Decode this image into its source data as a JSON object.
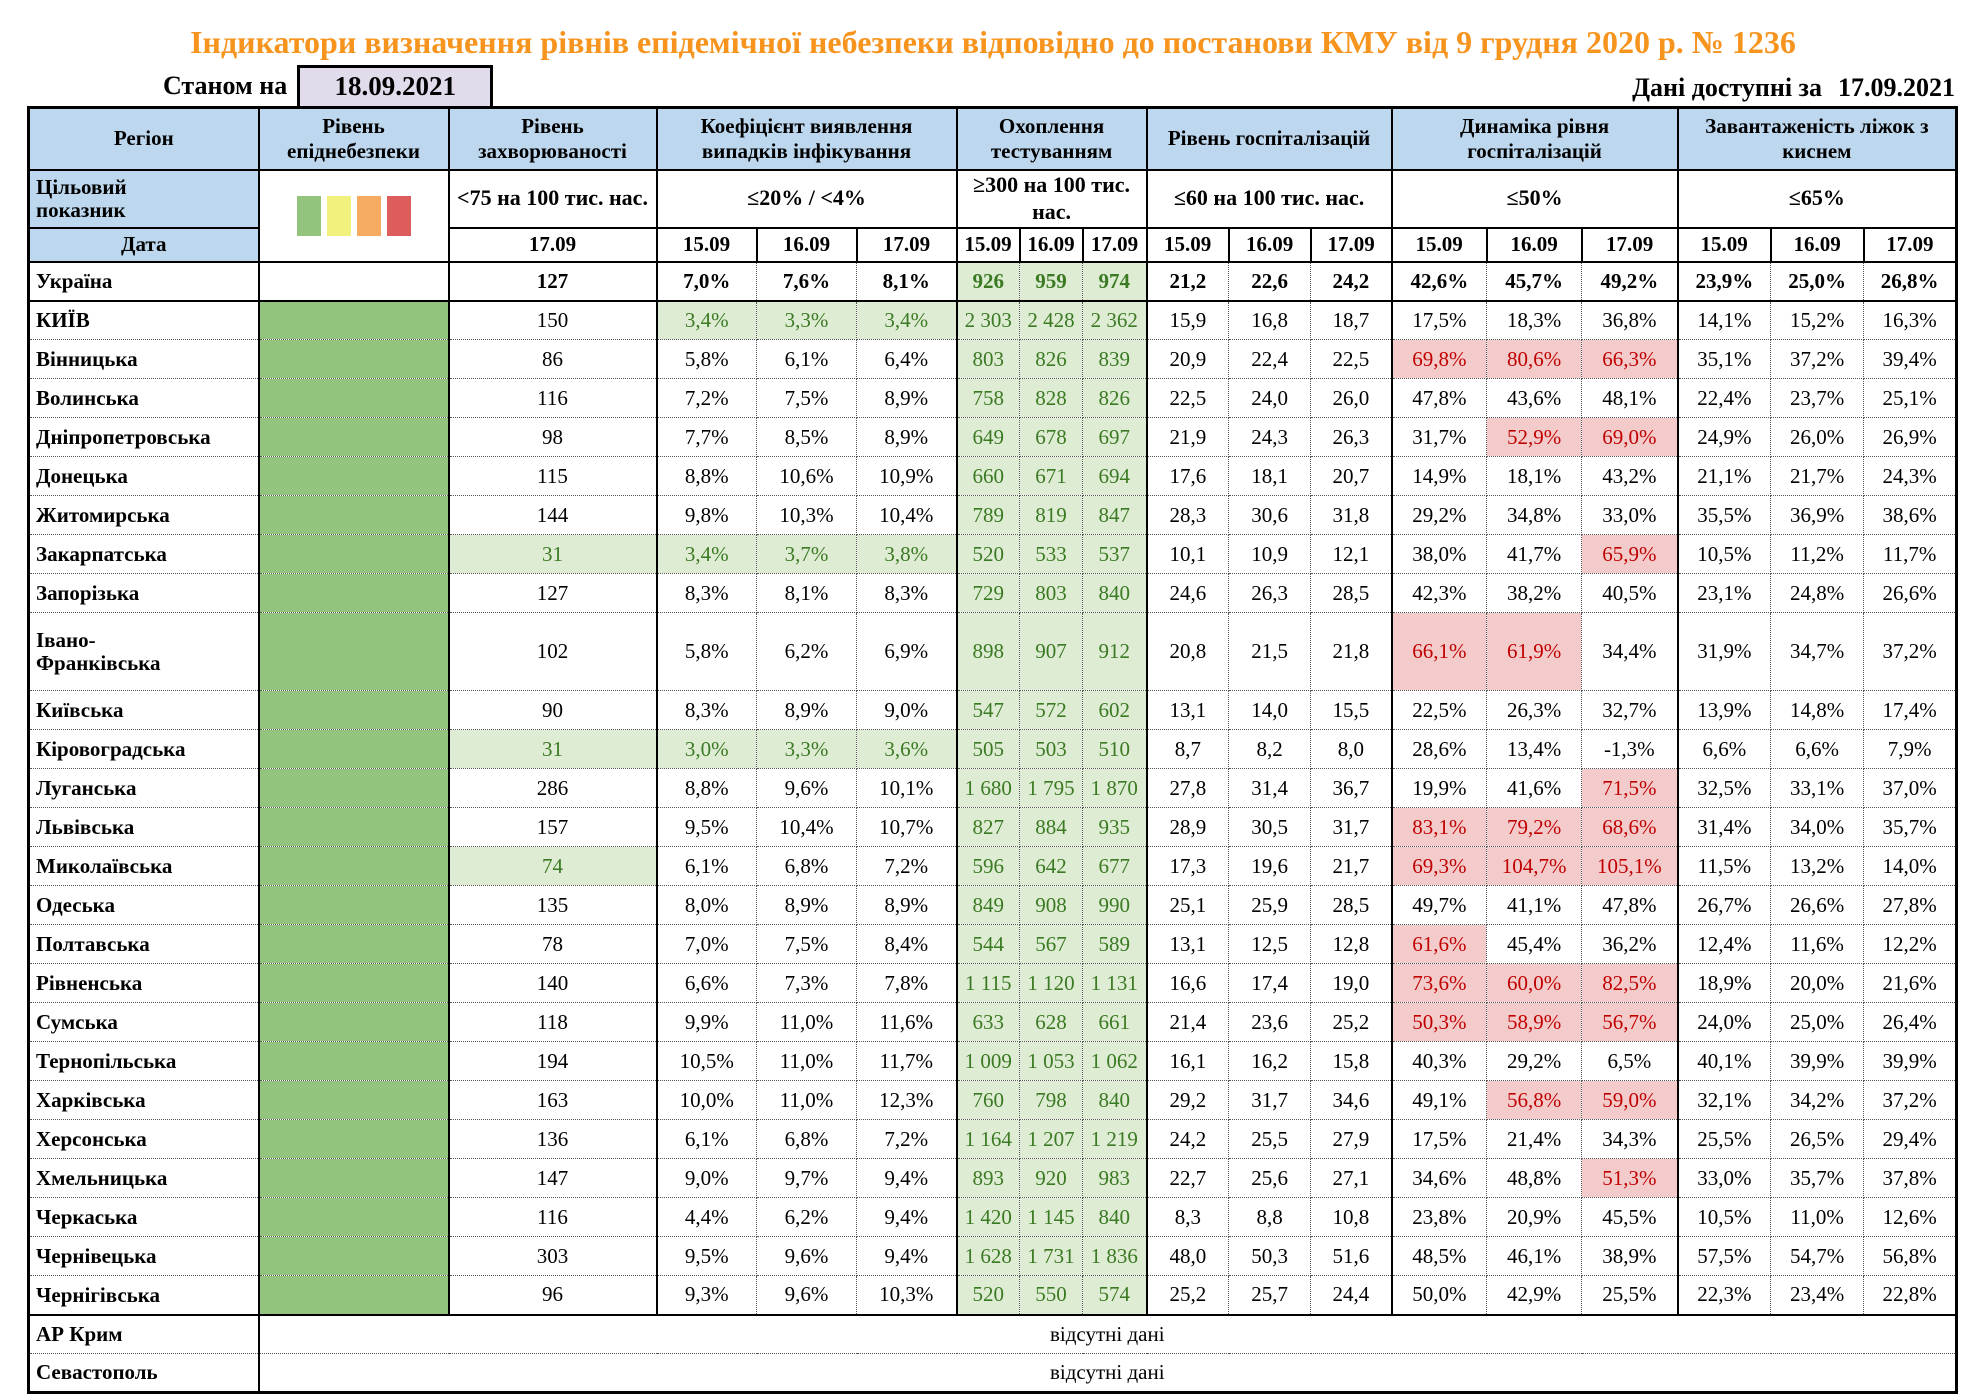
{
  "title": "Індикатори визначення рівнів епідемічної небезпеки відповідно до постанови КМУ від 9 грудня 2020 р. № 1236",
  "as_of_label": "Станом на",
  "as_of_date": "18.09.2021",
  "available_label": "Дані доступні за",
  "available_date": "17.09.2021",
  "columns": {
    "region": "Регіон",
    "risk_level": "Рівень епіднебезпеки",
    "incidence": "Рівень захворюваності",
    "detection": "Коефіцієнт виявлення випадків інфікування",
    "testing": "Охоплення тестуванням",
    "hospitalization": "Рівень госпіталізацій",
    "hosp_dynamics": "Динаміка рівня госпіталізацій",
    "oxygen_beds": "Завантаженість ліжок з киснем"
  },
  "target_row_label": "Цільовий\nпоказник",
  "targets": {
    "incidence": "<75 на 100 тис. нас.",
    "detection": "≤20% / <4%",
    "testing": "≥300 на 100 тис. нас.",
    "hospitalization": "≤60 на 100 тис. нас.",
    "dynamics": "≤50%",
    "beds": "≤65%"
  },
  "date_row_label": "Дата",
  "dates": {
    "incidence": "17.09",
    "d1": "15.09",
    "d2": "16.09",
    "d3": "17.09"
  },
  "legend_colors": [
    "#93C47D",
    "#F3F17E",
    "#F5AC61",
    "#DD5C5C"
  ],
  "risk_level_fill": "#93C47D",
  "no_data_text": "відсутні дані",
  "regions": [
    {
      "name": "Україна",
      "is_total": true,
      "incidence": "127",
      "inc_green": false,
      "coef": [
        "7,0%",
        "7,6%",
        "8,1%"
      ],
      "coef_green": false,
      "testing": [
        "926",
        "959",
        "974"
      ],
      "hosp": [
        "21,2",
        "22,6",
        "24,2"
      ],
      "dyn": [
        "42,6%",
        "45,7%",
        "49,2%"
      ],
      "dyn_red": [
        false,
        false,
        false
      ],
      "beds": [
        "23,9%",
        "25,0%",
        "26,8%"
      ]
    },
    {
      "name": "КИЇВ",
      "incidence": "150",
      "inc_green": false,
      "coef": [
        "3,4%",
        "3,3%",
        "3,4%"
      ],
      "coef_green": true,
      "testing": [
        "2 303",
        "2 428",
        "2 362"
      ],
      "hosp": [
        "15,9",
        "16,8",
        "18,7"
      ],
      "dyn": [
        "17,5%",
        "18,3%",
        "36,8%"
      ],
      "dyn_red": [
        false,
        false,
        false
      ],
      "beds": [
        "14,1%",
        "15,2%",
        "16,3%"
      ]
    },
    {
      "name": "Вінницька",
      "incidence": "86",
      "inc_green": false,
      "coef": [
        "5,8%",
        "6,1%",
        "6,4%"
      ],
      "coef_green": false,
      "testing": [
        "803",
        "826",
        "839"
      ],
      "hosp": [
        "20,9",
        "22,4",
        "22,5"
      ],
      "dyn": [
        "69,8%",
        "80,6%",
        "66,3%"
      ],
      "dyn_red": [
        true,
        true,
        true
      ],
      "beds": [
        "35,1%",
        "37,2%",
        "39,4%"
      ]
    },
    {
      "name": "Волинська",
      "incidence": "116",
      "inc_green": false,
      "coef": [
        "7,2%",
        "7,5%",
        "8,9%"
      ],
      "coef_green": false,
      "testing": [
        "758",
        "828",
        "826"
      ],
      "hosp": [
        "22,5",
        "24,0",
        "26,0"
      ],
      "dyn": [
        "47,8%",
        "43,6%",
        "48,1%"
      ],
      "dyn_red": [
        false,
        false,
        false
      ],
      "beds": [
        "22,4%",
        "23,7%",
        "25,1%"
      ]
    },
    {
      "name": "Дніпропетровська",
      "incidence": "98",
      "inc_green": false,
      "coef": [
        "7,7%",
        "8,5%",
        "8,9%"
      ],
      "coef_green": false,
      "testing": [
        "649",
        "678",
        "697"
      ],
      "hosp": [
        "21,9",
        "24,3",
        "26,3"
      ],
      "dyn": [
        "31,7%",
        "52,9%",
        "69,0%"
      ],
      "dyn_red": [
        false,
        true,
        true
      ],
      "beds": [
        "24,9%",
        "26,0%",
        "26,9%"
      ]
    },
    {
      "name": "Донецька",
      "incidence": "115",
      "inc_green": false,
      "coef": [
        "8,8%",
        "10,6%",
        "10,9%"
      ],
      "coef_green": false,
      "testing": [
        "660",
        "671",
        "694"
      ],
      "hosp": [
        "17,6",
        "18,1",
        "20,7"
      ],
      "dyn": [
        "14,9%",
        "18,1%",
        "43,2%"
      ],
      "dyn_red": [
        false,
        false,
        false
      ],
      "beds": [
        "21,1%",
        "21,7%",
        "24,3%"
      ]
    },
    {
      "name": "Житомирська",
      "incidence": "144",
      "inc_green": false,
      "coef": [
        "9,8%",
        "10,3%",
        "10,4%"
      ],
      "coef_green": false,
      "testing": [
        "789",
        "819",
        "847"
      ],
      "hosp": [
        "28,3",
        "30,6",
        "31,8"
      ],
      "dyn": [
        "29,2%",
        "34,8%",
        "33,0%"
      ],
      "dyn_red": [
        false,
        false,
        false
      ],
      "beds": [
        "35,5%",
        "36,9%",
        "38,6%"
      ]
    },
    {
      "name": "Закарпатська",
      "incidence": "31",
      "inc_green": true,
      "coef": [
        "3,4%",
        "3,7%",
        "3,8%"
      ],
      "coef_green": true,
      "testing": [
        "520",
        "533",
        "537"
      ],
      "hosp": [
        "10,1",
        "10,9",
        "12,1"
      ],
      "dyn": [
        "38,0%",
        "41,7%",
        "65,9%"
      ],
      "dyn_red": [
        false,
        false,
        true
      ],
      "beds": [
        "10,5%",
        "11,2%",
        "11,7%"
      ]
    },
    {
      "name": "Запорізька",
      "incidence": "127",
      "inc_green": false,
      "coef": [
        "8,3%",
        "8,1%",
        "8,3%"
      ],
      "coef_green": false,
      "testing": [
        "729",
        "803",
        "840"
      ],
      "hosp": [
        "24,6",
        "26,3",
        "28,5"
      ],
      "dyn": [
        "42,3%",
        "38,2%",
        "40,5%"
      ],
      "dyn_red": [
        false,
        false,
        false
      ],
      "beds": [
        "23,1%",
        "24,8%",
        "26,6%"
      ]
    },
    {
      "name": "Івано-\nФранківська",
      "incidence": "102",
      "inc_green": false,
      "coef": [
        "5,8%",
        "6,2%",
        "6,9%"
      ],
      "coef_green": false,
      "testing": [
        "898",
        "907",
        "912"
      ],
      "hosp": [
        "20,8",
        "21,5",
        "21,8"
      ],
      "dyn": [
        "66,1%",
        "61,9%",
        "34,4%"
      ],
      "dyn_red": [
        true,
        true,
        false
      ],
      "beds": [
        "31,9%",
        "34,7%",
        "37,2%"
      ]
    },
    {
      "name": "Київська",
      "incidence": "90",
      "inc_green": false,
      "coef": [
        "8,3%",
        "8,9%",
        "9,0%"
      ],
      "coef_green": false,
      "testing": [
        "547",
        "572",
        "602"
      ],
      "hosp": [
        "13,1",
        "14,0",
        "15,5"
      ],
      "dyn": [
        "22,5%",
        "26,3%",
        "32,7%"
      ],
      "dyn_red": [
        false,
        false,
        false
      ],
      "beds": [
        "13,9%",
        "14,8%",
        "17,4%"
      ]
    },
    {
      "name": "Кіровоградська",
      "incidence": "31",
      "inc_green": true,
      "coef": [
        "3,0%",
        "3,3%",
        "3,6%"
      ],
      "coef_green": true,
      "testing": [
        "505",
        "503",
        "510"
      ],
      "hosp": [
        "8,7",
        "8,2",
        "8,0"
      ],
      "dyn": [
        "28,6%",
        "13,4%",
        "-1,3%"
      ],
      "dyn_red": [
        false,
        false,
        false
      ],
      "beds": [
        "6,6%",
        "6,6%",
        "7,9%"
      ]
    },
    {
      "name": "Луганська",
      "incidence": "286",
      "inc_green": false,
      "coef": [
        "8,8%",
        "9,6%",
        "10,1%"
      ],
      "coef_green": false,
      "testing": [
        "1 680",
        "1 795",
        "1 870"
      ],
      "hosp": [
        "27,8",
        "31,4",
        "36,7"
      ],
      "dyn": [
        "19,9%",
        "41,6%",
        "71,5%"
      ],
      "dyn_red": [
        false,
        false,
        true
      ],
      "beds": [
        "32,5%",
        "33,1%",
        "37,0%"
      ]
    },
    {
      "name": "Львівська",
      "incidence": "157",
      "inc_green": false,
      "coef": [
        "9,5%",
        "10,4%",
        "10,7%"
      ],
      "coef_green": false,
      "testing": [
        "827",
        "884",
        "935"
      ],
      "hosp": [
        "28,9",
        "30,5",
        "31,7"
      ],
      "dyn": [
        "83,1%",
        "79,2%",
        "68,6%"
      ],
      "dyn_red": [
        true,
        true,
        true
      ],
      "beds": [
        "31,4%",
        "34,0%",
        "35,7%"
      ]
    },
    {
      "name": "Миколаївська",
      "incidence": "74",
      "inc_green": true,
      "coef": [
        "6,1%",
        "6,8%",
        "7,2%"
      ],
      "coef_green": false,
      "testing": [
        "596",
        "642",
        "677"
      ],
      "hosp": [
        "17,3",
        "19,6",
        "21,7"
      ],
      "dyn": [
        "69,3%",
        "104,7%",
        "105,1%"
      ],
      "dyn_red": [
        true,
        true,
        true
      ],
      "beds": [
        "11,5%",
        "13,2%",
        "14,0%"
      ]
    },
    {
      "name": "Одеська",
      "incidence": "135",
      "inc_green": false,
      "coef": [
        "8,0%",
        "8,9%",
        "8,9%"
      ],
      "coef_green": false,
      "testing": [
        "849",
        "908",
        "990"
      ],
      "hosp": [
        "25,1",
        "25,9",
        "28,5"
      ],
      "dyn": [
        "49,7%",
        "41,1%",
        "47,8%"
      ],
      "dyn_red": [
        false,
        false,
        false
      ],
      "beds": [
        "26,7%",
        "26,6%",
        "27,8%"
      ]
    },
    {
      "name": "Полтавська",
      "incidence": "78",
      "inc_green": false,
      "coef": [
        "7,0%",
        "7,5%",
        "8,4%"
      ],
      "coef_green": false,
      "testing": [
        "544",
        "567",
        "589"
      ],
      "hosp": [
        "13,1",
        "12,5",
        "12,8"
      ],
      "dyn": [
        "61,6%",
        "45,4%",
        "36,2%"
      ],
      "dyn_red": [
        true,
        false,
        false
      ],
      "beds": [
        "12,4%",
        "11,6%",
        "12,2%"
      ]
    },
    {
      "name": "Рівненська",
      "incidence": "140",
      "inc_green": false,
      "coef": [
        "6,6%",
        "7,3%",
        "7,8%"
      ],
      "coef_green": false,
      "testing": [
        "1 115",
        "1 120",
        "1 131"
      ],
      "hosp": [
        "16,6",
        "17,4",
        "19,0"
      ],
      "dyn": [
        "73,6%",
        "60,0%",
        "82,5%"
      ],
      "dyn_red": [
        true,
        true,
        true
      ],
      "beds": [
        "18,9%",
        "20,0%",
        "21,6%"
      ]
    },
    {
      "name": "Сумська",
      "incidence": "118",
      "inc_green": false,
      "coef": [
        "9,9%",
        "11,0%",
        "11,6%"
      ],
      "coef_green": false,
      "testing": [
        "633",
        "628",
        "661"
      ],
      "hosp": [
        "21,4",
        "23,6",
        "25,2"
      ],
      "dyn": [
        "50,3%",
        "58,9%",
        "56,7%"
      ],
      "dyn_red": [
        true,
        true,
        true
      ],
      "beds": [
        "24,0%",
        "25,0%",
        "26,4%"
      ]
    },
    {
      "name": "Тернопільська",
      "incidence": "194",
      "inc_green": false,
      "coef": [
        "10,5%",
        "11,0%",
        "11,7%"
      ],
      "coef_green": false,
      "testing": [
        "1 009",
        "1 053",
        "1 062"
      ],
      "hosp": [
        "16,1",
        "16,2",
        "15,8"
      ],
      "dyn": [
        "40,3%",
        "29,2%",
        "6,5%"
      ],
      "dyn_red": [
        false,
        false,
        false
      ],
      "beds": [
        "40,1%",
        "39,9%",
        "39,9%"
      ]
    },
    {
      "name": "Харківська",
      "incidence": "163",
      "inc_green": false,
      "coef": [
        "10,0%",
        "11,0%",
        "12,3%"
      ],
      "coef_green": false,
      "testing": [
        "760",
        "798",
        "840"
      ],
      "hosp": [
        "29,2",
        "31,7",
        "34,6"
      ],
      "dyn": [
        "49,1%",
        "56,8%",
        "59,0%"
      ],
      "dyn_red": [
        false,
        true,
        true
      ],
      "beds": [
        "32,1%",
        "34,2%",
        "37,2%"
      ]
    },
    {
      "name": "Херсонська",
      "incidence": "136",
      "inc_green": false,
      "coef": [
        "6,1%",
        "6,8%",
        "7,2%"
      ],
      "coef_green": false,
      "testing": [
        "1 164",
        "1 207",
        "1 219"
      ],
      "hosp": [
        "24,2",
        "25,5",
        "27,9"
      ],
      "dyn": [
        "17,5%",
        "21,4%",
        "34,3%"
      ],
      "dyn_red": [
        false,
        false,
        false
      ],
      "beds": [
        "25,5%",
        "26,5%",
        "29,4%"
      ]
    },
    {
      "name": "Хмельницька",
      "incidence": "147",
      "inc_green": false,
      "coef": [
        "9,0%",
        "9,7%",
        "9,4%"
      ],
      "coef_green": false,
      "testing": [
        "893",
        "920",
        "983"
      ],
      "hosp": [
        "22,7",
        "25,6",
        "27,1"
      ],
      "dyn": [
        "34,6%",
        "48,8%",
        "51,3%"
      ],
      "dyn_red": [
        false,
        false,
        true
      ],
      "beds": [
        "33,0%",
        "35,7%",
        "37,8%"
      ]
    },
    {
      "name": "Черкаська",
      "incidence": "116",
      "inc_green": false,
      "coef": [
        "4,4%",
        "6,2%",
        "9,4%"
      ],
      "coef_green": false,
      "testing": [
        "1 420",
        "1 145",
        "840"
      ],
      "hosp": [
        "8,3",
        "8,8",
        "10,8"
      ],
      "dyn": [
        "23,8%",
        "20,9%",
        "45,5%"
      ],
      "dyn_red": [
        false,
        false,
        false
      ],
      "beds": [
        "10,5%",
        "11,0%",
        "12,6%"
      ]
    },
    {
      "name": "Чернівецька",
      "incidence": "303",
      "inc_green": false,
      "coef": [
        "9,5%",
        "9,6%",
        "9,4%"
      ],
      "coef_green": false,
      "testing": [
        "1 628",
        "1 731",
        "1 836"
      ],
      "hosp": [
        "48,0",
        "50,3",
        "51,6"
      ],
      "dyn": [
        "48,5%",
        "46,1%",
        "38,9%"
      ],
      "dyn_red": [
        false,
        false,
        false
      ],
      "beds": [
        "57,5%",
        "54,7%",
        "56,8%"
      ]
    },
    {
      "name": "Чернігівська",
      "incidence": "96",
      "inc_green": false,
      "coef": [
        "9,3%",
        "9,6%",
        "10,3%"
      ],
      "coef_green": false,
      "testing": [
        "520",
        "550",
        "574"
      ],
      "hosp": [
        "25,2",
        "25,7",
        "24,4"
      ],
      "dyn": [
        "50,0%",
        "42,9%",
        "25,5%"
      ],
      "dyn_red": [
        false,
        false,
        false
      ],
      "beds": [
        "22,3%",
        "23,4%",
        "22,8%"
      ]
    }
  ],
  "no_data_regions": [
    "АР Крим",
    "Севастополь"
  ]
}
